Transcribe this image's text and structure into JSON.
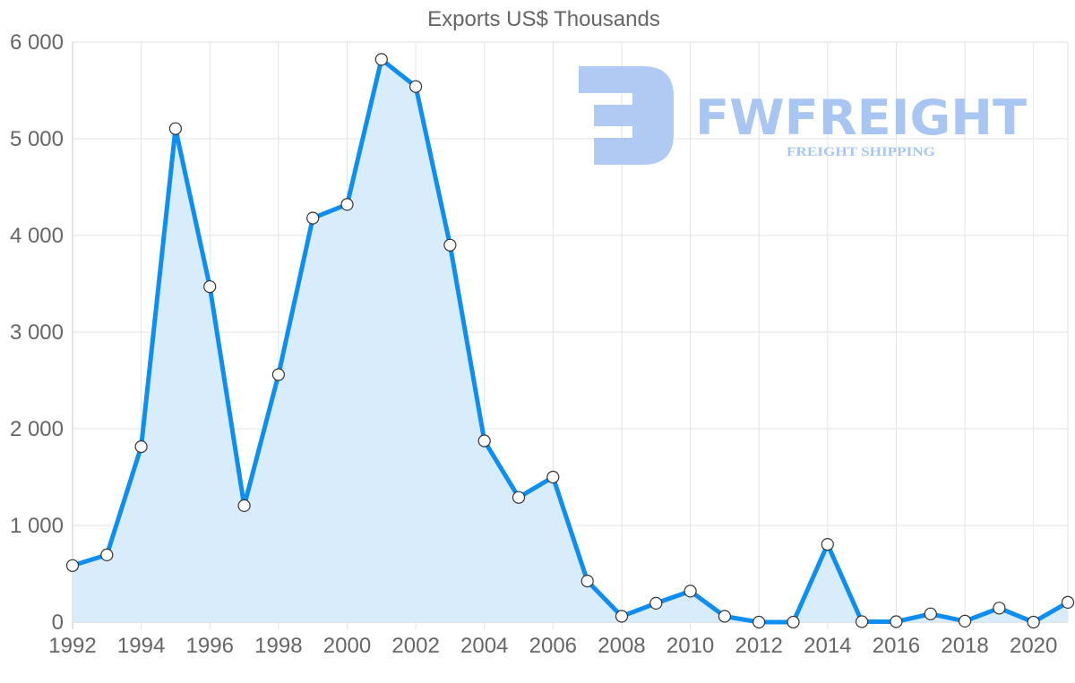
{
  "chart_data": {
    "type": "area",
    "title": "Exports US$ Thousands",
    "xlabel": "",
    "ylabel": "",
    "x": [
      1992,
      1993,
      1994,
      1995,
      1996,
      1997,
      1998,
      1999,
      2000,
      2001,
      2002,
      2003,
      2004,
      2005,
      2006,
      2007,
      2008,
      2009,
      2010,
      2011,
      2012,
      2013,
      2014,
      2015,
      2016,
      2017,
      2018,
      2019,
      2020,
      2021
    ],
    "series": [
      {
        "name": "Exports US$ Thousands",
        "values": [
          585,
          695,
          1815,
          5105,
          3470,
          1205,
          2560,
          4180,
          4320,
          5820,
          5540,
          3900,
          1875,
          1290,
          1500,
          425,
          60,
          195,
          320,
          60,
          0,
          0,
          805,
          5,
          5,
          85,
          10,
          145,
          0,
          205
        ]
      }
    ],
    "ylim": [
      0,
      6000
    ],
    "y_ticks": [
      "0",
      "1 000",
      "2 000",
      "3 000",
      "4 000",
      "5 000",
      "6 000"
    ],
    "x_tick_labels": [
      "1992",
      "1994",
      "1996",
      "1998",
      "2000",
      "2002",
      "2004",
      "2006",
      "2008",
      "2010",
      "2012",
      "2014",
      "2016",
      "2018",
      "2020"
    ],
    "grid": true,
    "legend": "none",
    "colors": {
      "line": "#0d8ef0",
      "fill": "#d6ebfb",
      "marker_fill": "#ffffff",
      "marker_stroke": "#333333",
      "grid": "#e2e2e2",
      "text": "#666666"
    }
  },
  "watermark": {
    "brand": "FWFREIGHT",
    "tagline": "FREIGHT SHIPPING",
    "color": "#a9c6f2"
  }
}
